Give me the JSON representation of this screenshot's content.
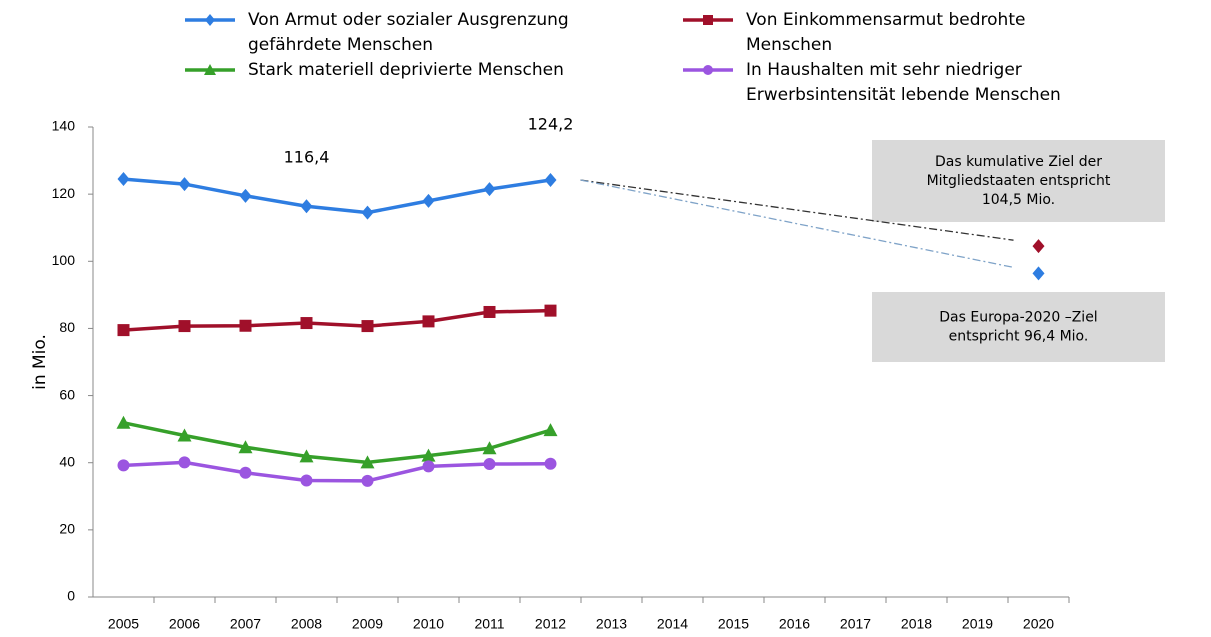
{
  "chart_data": {
    "type": "line",
    "y_label": "in Mio.",
    "categories": [
      "2005",
      "2006",
      "2007",
      "2008",
      "2009",
      "2010",
      "2011",
      "2012",
      "2013",
      "2014",
      "2015",
      "2016",
      "2017",
      "2018",
      "2019",
      "2020"
    ],
    "series": [
      {
        "name": "Von Armut oder sozialer Ausgrenzung\ngefährdete Menschen",
        "color": "#2e7de1",
        "marker": "diamond",
        "values": [
          124.5,
          123.0,
          119.5,
          116.4,
          114.5,
          118.0,
          121.5,
          124.2,
          null,
          null,
          null,
          null,
          null,
          null,
          null,
          null
        ],
        "value_labels": [
          null,
          null,
          null,
          "116,4",
          null,
          null,
          null,
          "124,2",
          null,
          null,
          null,
          null,
          null,
          null,
          null,
          null
        ]
      },
      {
        "name": "Von Einkommensarmut bedrohte\nMenschen",
        "color": "#a0102a",
        "marker": "square",
        "values": [
          79.5,
          80.7,
          80.8,
          81.6,
          80.7,
          82.1,
          84.9,
          85.3,
          null,
          null,
          null,
          null,
          null,
          null,
          null,
          null
        ]
      },
      {
        "name": "Stark materiell deprivierte Menschen",
        "color": "#36a02a",
        "marker": "triangle",
        "values": [
          51.9,
          48.1,
          44.6,
          41.9,
          40.1,
          42.1,
          44.3,
          49.7,
          null,
          null,
          null,
          null,
          null,
          null,
          null,
          null
        ]
      },
      {
        "name": "In Haushalten mit sehr niedriger\nErwerbsintensität lebende Menschen",
        "color": "#9b55e0",
        "marker": "circle",
        "values": [
          39.2,
          40.1,
          37.0,
          34.7,
          34.6,
          38.9,
          39.6,
          39.7,
          null,
          null,
          null,
          null,
          null,
          null,
          null,
          null
        ]
      }
    ],
    "target_points": [
      {
        "x": "2020",
        "value": 104.5,
        "color": "#a0102a",
        "trend_color": "#333333"
      },
      {
        "x": "2020",
        "value": 96.4,
        "color": "#2e7de1",
        "trend_color": "#7fa3c8"
      }
    ],
    "annotations": [
      {
        "lines": [
          "Das kumulative Ziel der",
          "Mitgliedstaaten entspricht",
          "104,5 Mio."
        ]
      },
      {
        "lines": [
          "Das Europa-2020 –Ziel",
          "entspricht  96,4 Mio."
        ]
      }
    ],
    "ylim": [
      0,
      140
    ],
    "yticks": [
      0,
      20,
      40,
      60,
      80,
      100,
      120,
      140
    ],
    "grid": false
  }
}
